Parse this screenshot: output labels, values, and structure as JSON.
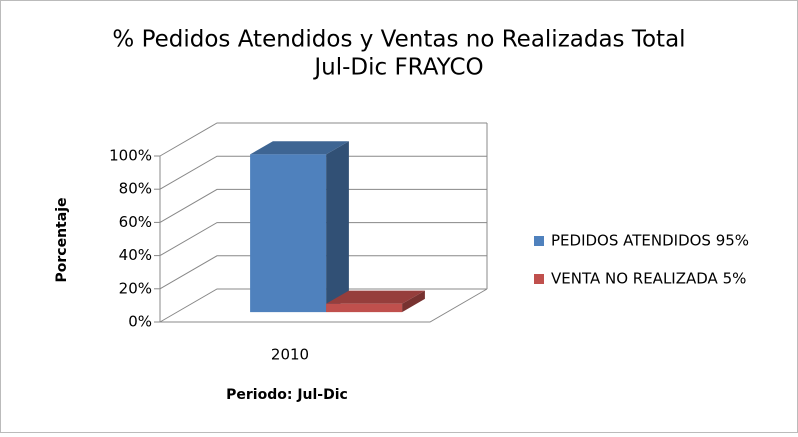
{
  "chart_data": {
    "type": "bar3d",
    "title": [
      "% Pedidos Atendidos y Ventas no Realizadas Total",
      "Jul-Dic FRAYCO"
    ],
    "y_label": "Porcentaje",
    "x_label": "Periodo: Jul-Dic",
    "categories": [
      "2010"
    ],
    "series": [
      {
        "name": "PEDIDOS ATENDIDOS 95%",
        "color": "#4f81bd",
        "values": [
          95
        ]
      },
      {
        "name": "VENTA NO REALIZADA 5%",
        "color": "#c0504d",
        "values": [
          5
        ]
      }
    ],
    "ylim": [
      0,
      100
    ],
    "yticks": [
      {
        "value": 0,
        "label": "0%"
      },
      {
        "value": 20,
        "label": "20%"
      },
      {
        "value": 40,
        "label": "40%"
      },
      {
        "value": 60,
        "label": "60%"
      },
      {
        "value": 80,
        "label": "80%"
      },
      {
        "value": 100,
        "label": "100%"
      }
    ],
    "grid": true,
    "legend": "right"
  }
}
